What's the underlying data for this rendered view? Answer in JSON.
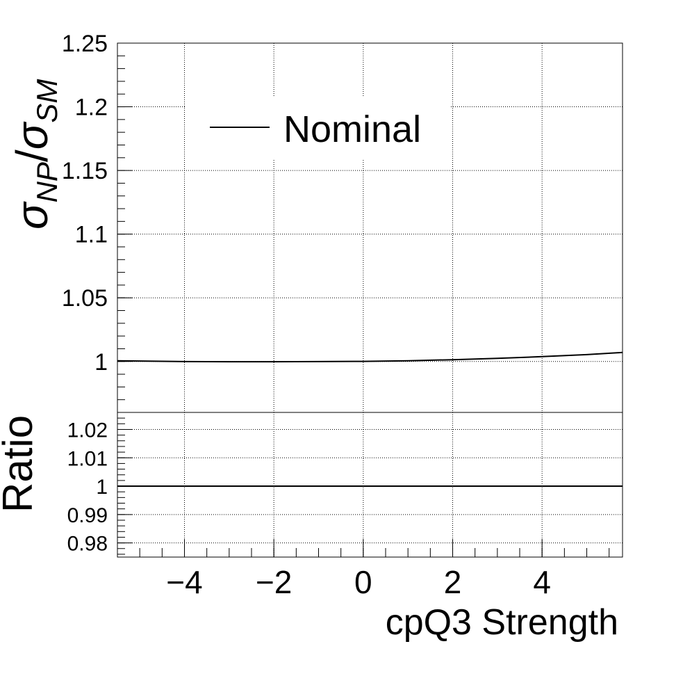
{
  "chart_data": [
    {
      "type": "line",
      "panel": "main",
      "ylabel": "σ_NP/σ_SM",
      "ylabel_main": "σ",
      "ylabel_sub1": "NP",
      "ylabel_slash": "/",
      "ylabel_main2": "σ",
      "ylabel_sub2": "SM",
      "xlim": [
        -5.5,
        5.8
      ],
      "ylim": [
        0.96,
        1.25
      ],
      "grid": true,
      "legend_position": "top-left",
      "yticks": [
        1,
        1.05,
        1.1,
        1.15,
        1.2,
        1.25
      ],
      "ytick_labels": [
        "1",
        "1.05",
        "1.1",
        "1.15",
        "1.2",
        "1.25"
      ],
      "series": [
        {
          "name": "Nominal",
          "x": [
            -5.5,
            -4.0,
            -3.0,
            -2.0,
            -1.0,
            0.0,
            1.0,
            2.0,
            3.0,
            4.0,
            5.0,
            5.8
          ],
          "y": [
            1.0005,
            0.9999,
            0.9998,
            0.9998,
            0.9999,
            1.0001,
            1.0006,
            1.0014,
            1.0025,
            1.0038,
            1.0054,
            1.0071
          ]
        }
      ]
    },
    {
      "type": "line",
      "panel": "ratio",
      "ylabel": "Ratio",
      "xlabel": "cpQ3 Strength",
      "xlim": [
        -5.5,
        5.8
      ],
      "ylim": [
        0.975,
        1.026
      ],
      "grid": true,
      "yticks": [
        0.98,
        0.99,
        1,
        1.01,
        1.02
      ],
      "ytick_labels": [
        "0.98",
        "0.99",
        "1",
        "1.01",
        "1.02"
      ],
      "xticks": [
        -4,
        -2,
        0,
        2,
        4
      ],
      "xtick_labels": [
        "−4",
        "−2",
        "0",
        "2",
        "4"
      ],
      "series": [
        {
          "x": [
            -5.5,
            -4.0,
            -2.0,
            0.0,
            2.0,
            4.0,
            5.8
          ],
          "y": [
            1.0,
            1.0,
            1.0,
            1.0,
            1.0,
            1.0,
            1.0
          ]
        }
      ]
    }
  ]
}
